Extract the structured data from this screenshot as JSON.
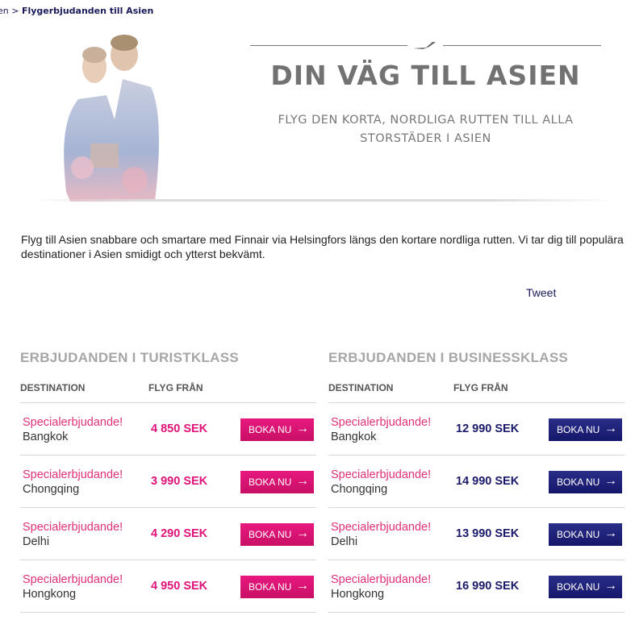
{
  "breadcrumb": {
    "prev": "en",
    "separator": ">",
    "current": "Flygerbjudanden till Asien"
  },
  "hero": {
    "title": "DIN VÄG TILL ASIEN",
    "subtitle_line1": "FLYG DEN KORTA, NORDLIGA RUTTEN TILL ALLA",
    "subtitle_line2": "STORSTÄDER I ASIEN"
  },
  "intro": "Flyg till Asien snabbare och smartare med Finnair via Helsingfors längs den kortare nordliga rutten. Vi tar dig till populära destinationer i Asien smidigt och ytterst bekvämt.",
  "tweet": "Tweet",
  "colors": {
    "economy": "#e0137a",
    "business": "#1a1a6a",
    "special": "#e0307a"
  },
  "economy": {
    "title": "ERBJUDANDEN I TURISTKLASS",
    "col_destination": "DESTINATION",
    "col_price": "FLYG FRÅN",
    "rows": [
      {
        "label": "Specialerbjudande!",
        "city": "Bangkok",
        "price": "4 850 SEK",
        "button": "BOKA NU"
      },
      {
        "label": "Specialerbjudande!",
        "city": "Chongqing",
        "price": "3 990 SEK",
        "button": "BOKA NU"
      },
      {
        "label": "Specialerbjudande!",
        "city": "Delhi",
        "price": "4 290 SEK",
        "button": "BOKA NU"
      },
      {
        "label": "Specialerbjudande!",
        "city": "Hongkong",
        "price": "4 950 SEK",
        "button": "BOKA NU"
      }
    ]
  },
  "business": {
    "title": "ERBJUDANDEN I BUSINESSKLASS",
    "col_destination": "DESTINATION",
    "col_price": "FLYG FRÅN",
    "rows": [
      {
        "label": "Specialerbjudande!",
        "city": "Bangkok",
        "price": "12 990 SEK",
        "button": "BOKA NU"
      },
      {
        "label": "Specialerbjudande!",
        "city": "Chongqing",
        "price": "14 990 SEK",
        "button": "BOKA NU"
      },
      {
        "label": "Specialerbjudande!",
        "city": "Delhi",
        "price": "13 990 SEK",
        "button": "BOKA NU"
      },
      {
        "label": "Specialerbjudande!",
        "city": "Hongkong",
        "price": "16 990 SEK",
        "button": "BOKA NU"
      }
    ]
  }
}
